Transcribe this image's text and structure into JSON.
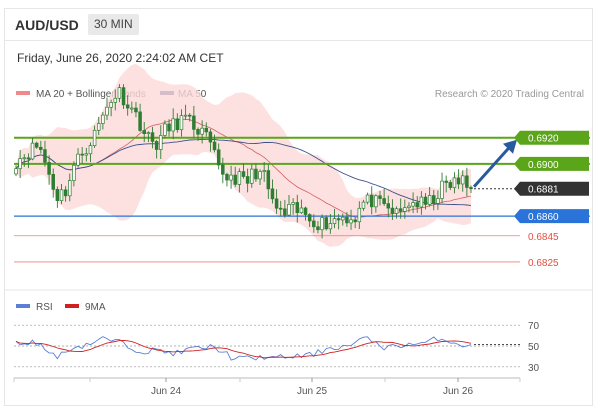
{
  "header": {
    "symbol": "AUD/USD",
    "interval": "30 MIN"
  },
  "timestamp": "Friday, June 26, 2020 2:24:02 AM CET",
  "legend": {
    "bollinger": "MA 20 + Bollinger Bands",
    "ma50": "MA 50",
    "credit": "Research © 2020 Trading Central"
  },
  "colors": {
    "bollinger": "#f08a8a",
    "band_fill": "#fcd9d9",
    "ma20": "#d46060",
    "ma50": "#3b4f8a",
    "resistance": "#5aa51a",
    "support_blue": "#2a73d9",
    "support_red": "#e74c3c",
    "candle": "#2e7d32",
    "arrow": "#2a5a9e",
    "last": "#333333",
    "rsi": "#5b7fd4",
    "rsi_ma": "#d02020"
  },
  "chart_data": [
    {
      "type": "candlestick",
      "title": "AUD/USD 30 MIN",
      "ylim": [
        0.6815,
        0.6945
      ],
      "x_tick_labels": [
        "Jun 24",
        "Jun 25",
        "Jun 26"
      ],
      "overlays": [
        "MA 20 + Bollinger Bands",
        "MA 50"
      ],
      "price_levels": [
        {
          "value": 0.692,
          "label": "0.6920",
          "kind": "resistance"
        },
        {
          "value": 0.69,
          "label": "0.6900",
          "kind": "resistance"
        },
        {
          "value": 0.6881,
          "label": "0.6881",
          "kind": "last"
        },
        {
          "value": 0.686,
          "label": "0.6860",
          "kind": "support_blue"
        },
        {
          "value": 0.6845,
          "label": "0.6845",
          "kind": "support_red"
        },
        {
          "value": 0.6825,
          "label": "0.6825",
          "kind": "support_red"
        }
      ],
      "anchors": [
        0.69,
        0.6905,
        0.691,
        0.6915,
        0.6895,
        0.6875,
        0.688,
        0.69,
        0.691,
        0.692,
        0.6935,
        0.695,
        0.6955,
        0.6945,
        0.6935,
        0.692,
        0.6915,
        0.6925,
        0.693,
        0.6935,
        0.693,
        0.6925,
        0.6915,
        0.6895,
        0.689,
        0.689,
        0.6885,
        0.6895,
        0.689,
        0.687,
        0.686,
        0.6865,
        0.6863,
        0.686,
        0.6855,
        0.6855,
        0.6858,
        0.686,
        0.6858,
        0.687,
        0.6872,
        0.6867,
        0.6865,
        0.686,
        0.687,
        0.687,
        0.6868,
        0.6875,
        0.6883,
        0.6885,
        0.6887,
        0.6878
      ]
    },
    {
      "type": "line",
      "title": "RSI",
      "series": [
        {
          "name": "RSI"
        },
        {
          "name": "9MA"
        }
      ],
      "ylim": [
        25,
        75
      ],
      "y_ticks": [
        70,
        50,
        30
      ],
      "anchors": [
        52,
        54,
        53,
        44,
        40,
        48,
        50,
        53,
        57,
        55,
        52,
        47,
        45,
        46,
        44,
        43,
        47,
        48,
        49,
        46,
        38,
        38,
        38,
        40,
        38,
        40,
        40,
        41,
        44,
        49,
        49,
        51,
        57,
        55,
        49,
        49,
        52,
        52,
        53,
        58,
        55,
        52,
        49
      ]
    }
  ]
}
